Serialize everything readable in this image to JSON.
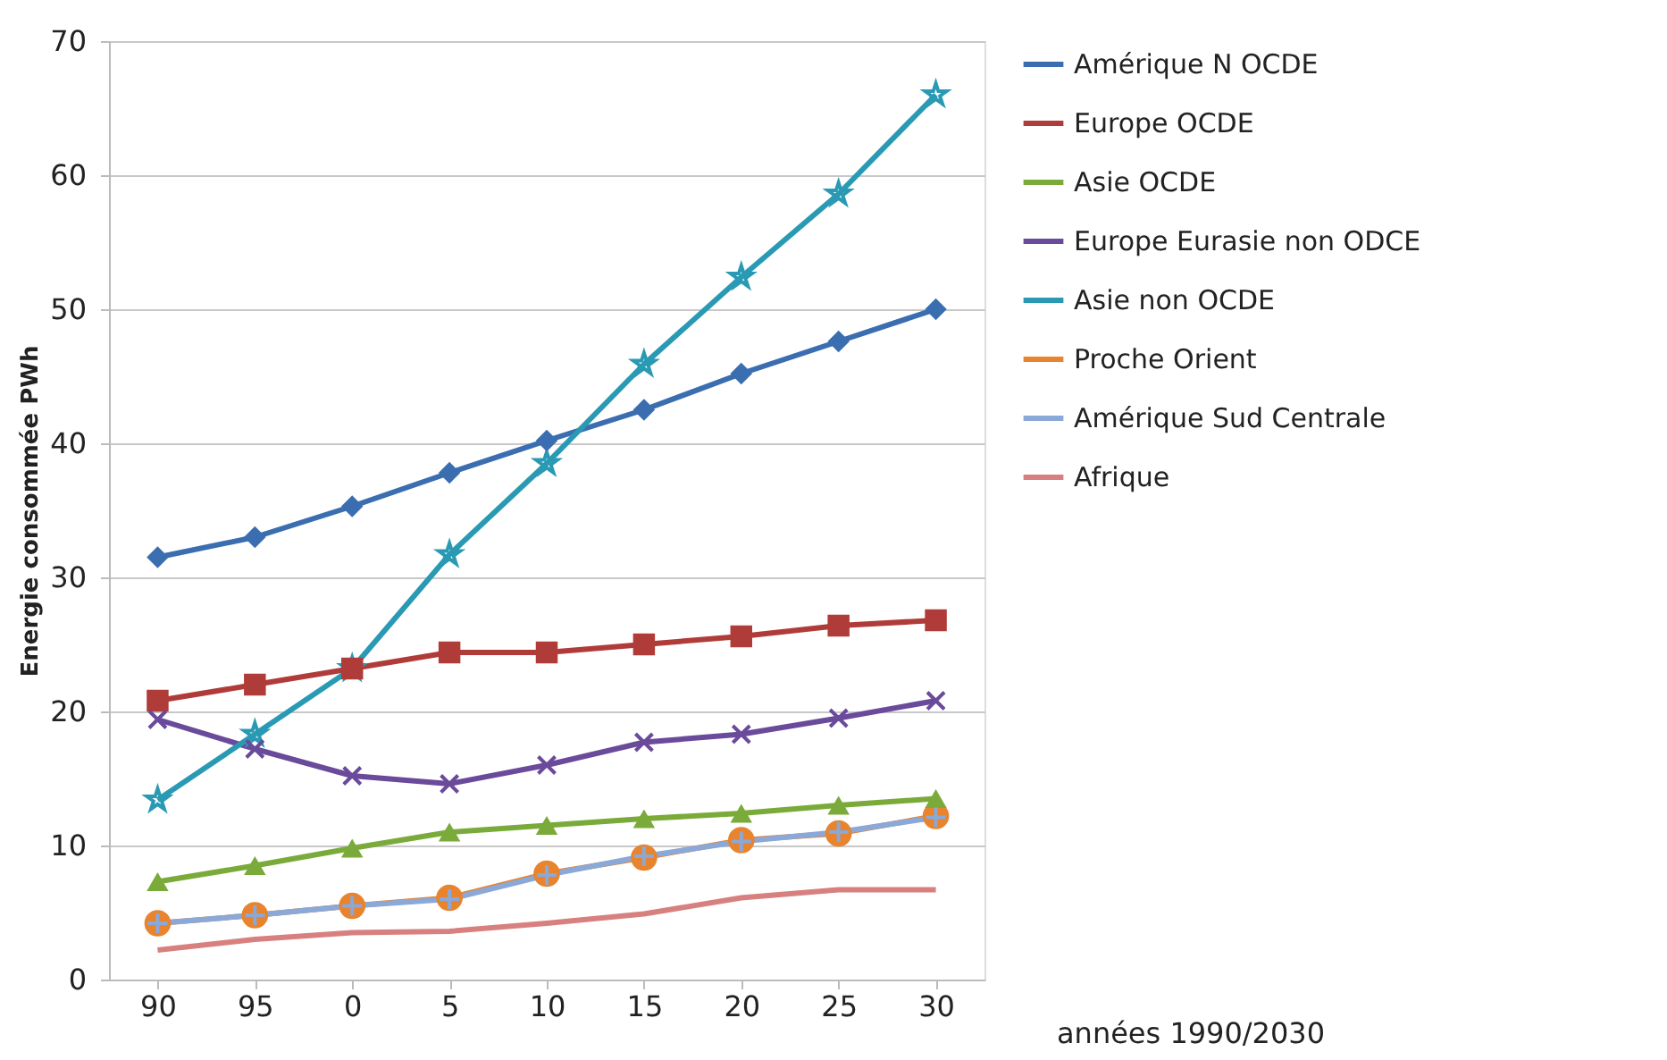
{
  "chart_data": {
    "type": "line",
    "xlabel": "années 1990/2030",
    "ylabel": "Energie consommée  PWh",
    "categories": [
      "90",
      "95",
      "0",
      "5",
      "10",
      "15",
      "20",
      "25",
      "30"
    ],
    "ylim": [
      0,
      70
    ],
    "yticks": [
      0,
      10,
      20,
      30,
      40,
      50,
      60,
      70
    ],
    "grid": "y",
    "legend": "right",
    "series": [
      {
        "name": "Amérique N OCDE",
        "color": "#3a6eb0",
        "marker": "diamond",
        "values": [
          31.5,
          33,
          35.3,
          37.8,
          40.2,
          42.5,
          45.2,
          47.6,
          50
        ]
      },
      {
        "name": "Europe OCDE",
        "color": "#b03c3a",
        "marker": "square",
        "values": [
          20.8,
          22,
          23.2,
          24.4,
          24.4,
          25,
          25.6,
          26.4,
          26.8
        ]
      },
      {
        "name": "Asie OCDE",
        "color": "#7aab3a",
        "marker": "triangle",
        "values": [
          7.3,
          8.5,
          9.8,
          11,
          11.5,
          12,
          12.4,
          13,
          13.5
        ]
      },
      {
        "name": "Europe Eurasie non ODCE",
        "color": "#6a4a9a",
        "marker": "x",
        "values": [
          19.4,
          17.2,
          15.2,
          14.6,
          16,
          17.7,
          18.3,
          19.5,
          20.8
        ]
      },
      {
        "name": "Asie non OCDE",
        "color": "#2a9ab4",
        "marker": "star",
        "values": [
          13.4,
          18.3,
          23.2,
          31.7,
          38.5,
          45.9,
          52.4,
          58.6,
          66
        ]
      },
      {
        "name": "Proche Orient",
        "color": "#e8842e",
        "marker": "circle",
        "values": [
          4.2,
          4.8,
          5.5,
          6.1,
          7.9,
          9.1,
          10.4,
          10.9,
          12.2
        ]
      },
      {
        "name": "Amérique Sud Centrale",
        "color": "#8aa8d8",
        "marker": "cross",
        "values": [
          4.2,
          4.8,
          5.5,
          6.0,
          7.8,
          9.2,
          10.3,
          11.0,
          12.1
        ]
      },
      {
        "name": "Afrique",
        "color": "#d88080",
        "marker": "none",
        "values": [
          2.2,
          3.0,
          3.5,
          3.6,
          4.2,
          4.9,
          6.1,
          6.7,
          6.7
        ]
      }
    ]
  }
}
